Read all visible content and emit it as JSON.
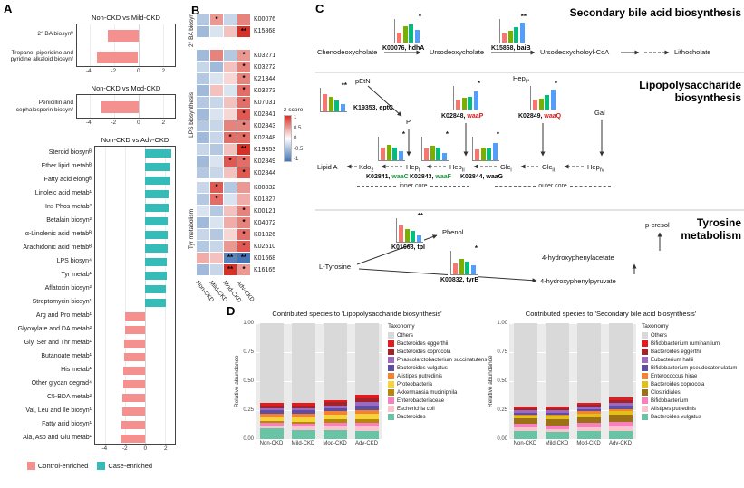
{
  "labels": {
    "a": "A",
    "b": "B",
    "c": "C",
    "d": "D"
  },
  "panel_a": {
    "legend": [
      {
        "label": "Control-enriched",
        "color": "#F4908E"
      },
      {
        "label": "Case-enriched",
        "color": "#35BCB9"
      }
    ]
  },
  "heatmap_scale": {
    "title": "z-score",
    "ticks": [
      "1",
      "0.5",
      "0",
      "-0.5",
      "-1"
    ]
  },
  "mini_colors": [
    "#F8766D",
    "#7CAE00",
    "#00BF7D",
    "#529EFF"
  ],
  "mini_categories": [
    "Non-CKD",
    "Mild-CKD",
    "Mod-CKD",
    "Adv-CKD"
  ],
  "pathway": {
    "bile": {
      "title": "Secondary bile acid biosynthesis",
      "cheno": "Chenodeoxycholate",
      "urso": "Ursodeoxycholate",
      "urso_coa": "Ursodeoxycholoyl-CoA",
      "litho": "Lithocholate",
      "hdhA": {
        "ko": "K00076, ",
        "gene": "hdhA",
        "gene_color": "#000000"
      },
      "baiB": {
        "ko": "K15868, ",
        "gene": "baiB",
        "gene_color": "#000000"
      }
    },
    "lps": {
      "title1": "Lipopolysaccharide",
      "title2": "biosynthesis",
      "petn": "pEtN",
      "p": "P",
      "hep3": {
        "base": "Hep",
        "sub": "III"
      },
      "gal": "Gal",
      "lipid_a": "Lipid A",
      "kdo2": {
        "base": "Kdo",
        "sub": "2"
      },
      "hep1": {
        "base": "Hep",
        "sub": "I"
      },
      "hep2": {
        "base": "Hep",
        "sub": "II"
      },
      "glc1": {
        "base": "Glc",
        "sub": "I"
      },
      "glc2": {
        "base": "Glc",
        "sub": "II"
      },
      "hep4": {
        "base": "Hep",
        "sub": "IV"
      },
      "eptC": {
        "ko": "K19353, ",
        "gene": "eptC",
        "gene_color": "#000000"
      },
      "waaP": {
        "ko": "K02848, ",
        "gene": "waaP",
        "gene_color": "#D7191C"
      },
      "waaQ": {
        "ko": "K02849, ",
        "gene": "waaQ",
        "gene_color": "#D7191C"
      },
      "waaC": {
        "ko": "K02841, ",
        "gene": "waaC",
        "gene_color": "#1A9641"
      },
      "waaF": {
        "ko": "K02843, ",
        "gene": "waaF",
        "gene_color": "#1A9641"
      },
      "waaG": {
        "ko": "K02844, ",
        "gene": "waaG",
        "gene_color": "#000000"
      },
      "inner_core": "inner core",
      "outer_core": "outer core"
    },
    "tyr": {
      "title1": "Tyrosine",
      "title2": "metabolism",
      "ltyr": "L-Tyrosine",
      "phenol": "Phenol",
      "hpp": "4-hydroxyphenylpyruvate",
      "hpa": "4-hydroxyphenylacetate",
      "pcresol": "p-cresol",
      "tpl": {
        "ko": "K01668, ",
        "gene": "tpl",
        "gene_color": "#000000"
      },
      "tyrB": {
        "ko": "K00832, ",
        "gene": "tyrB",
        "gene_color": "#000000"
      }
    }
  },
  "chart_data": [
    {
      "id": "a1",
      "panel": "A",
      "type": "bar",
      "orientation": "horizontal",
      "title": "Non-CKD vs Mild-CKD",
      "categories": [
        "2° BA biosynᴮ",
        "Tropane, piperidine and pyridine alkaloid biosyn²"
      ],
      "values": [
        -2.5,
        -3.4
      ],
      "xlim": [
        -5,
        3
      ],
      "xticks": [
        -4,
        -2,
        0,
        2
      ],
      "bar_colors": {
        "negative": "#F4908E",
        "positive": "#35BCB9"
      }
    },
    {
      "id": "a2",
      "panel": "A",
      "type": "bar",
      "orientation": "horizontal",
      "title": "Non-CKD vs Mod-CKD",
      "categories": [
        "Penicillin and cephalosporin biosyn²"
      ],
      "values": [
        -3.0
      ],
      "xlim": [
        -5,
        3
      ],
      "xticks": [
        -4,
        -2,
        0,
        2
      ],
      "bar_colors": {
        "negative": "#F4908E",
        "positive": "#35BCB9"
      }
    },
    {
      "id": "a3",
      "panel": "A",
      "type": "bar",
      "orientation": "horizontal",
      "title": "Non-CKD vs Adv-CKD",
      "categories": [
        "Steroid biosynᴮ",
        "Ether lipid metabᴮ",
        "Fatty acid elongᴮ",
        "Linoleic acid metab¹",
        "Ins Phos metab²",
        "Betalain biosyn²",
        "α-Linolenic acid metabᴮ",
        "Arachidonic acid metabᴮ",
        "LPS biosyn⁴",
        "Tyr metab¹",
        "Aflatoxin biosyn²",
        "Streptomycin biosyn¹",
        "Arg and Pro metab¹",
        "Glyoxylate and DA metab²",
        "Gly, Ser and Thr metab¹",
        "Butanoate metab¹",
        "His metab¹",
        "Other glycan degrad⁴",
        "C5-BDA metab²",
        "Val, Leu and Ile biosyn¹",
        "Fatty acid biosyn¹",
        "Ala, Asp and Glu metab¹"
      ],
      "values": [
        2.6,
        2.5,
        2.5,
        2.4,
        2.4,
        2.3,
        2.3,
        2.3,
        2.2,
        2.2,
        2.1,
        2.1,
        -2.0,
        -2.0,
        -2.1,
        -2.1,
        -2.2,
        -2.2,
        -2.3,
        -2.3,
        -2.4,
        -2.5
      ],
      "xlim": [
        -5,
        3
      ],
      "xticks": [
        -4,
        -2,
        0,
        2
      ],
      "bar_colors": {
        "negative": "#F4908E",
        "positive": "#35BCB9"
      }
    },
    {
      "id": "b",
      "panel": "B",
      "type": "heatmap",
      "columns": [
        "Non-CKD",
        "Mild-CKD",
        "Mod-CKD",
        "Adv-CKD"
      ],
      "zlim": [
        -1,
        1
      ],
      "colors": {
        "max": "#D73027",
        "mid": "#FFFFFF",
        "min": "#4575B4"
      },
      "groups": [
        {
          "label": "2° BA biosyn",
          "rows": [
            {
              "id": "K00076",
              "values": [
                -0.4,
                0.5,
                -0.3,
                0.6
              ],
              "sig": [
                "",
                "*",
                "",
                ""
              ]
            },
            {
              "id": "K15868",
              "values": [
                -0.5,
                -0.2,
                0.3,
                1.0
              ],
              "sig": [
                "",
                "",
                "",
                "**"
              ]
            }
          ]
        },
        {
          "label": "LPS biosynthesis",
          "rows": [
            {
              "id": "K03271",
              "values": [
                -0.5,
                0.6,
                -0.4,
                0.5
              ],
              "sig": [
                "",
                "",
                "",
                "*"
              ]
            },
            {
              "id": "K03272",
              "values": [
                -0.3,
                -0.5,
                0.3,
                0.6
              ],
              "sig": [
                "",
                "",
                "",
                "*"
              ]
            },
            {
              "id": "K21344",
              "values": [
                -0.4,
                -0.2,
                0.2,
                0.6
              ],
              "sig": [
                "",
                "",
                "",
                "*"
              ]
            },
            {
              "id": "K03273",
              "values": [
                -0.5,
                0.3,
                -0.2,
                0.7
              ],
              "sig": [
                "",
                "",
                "",
                "*"
              ]
            },
            {
              "id": "K07031",
              "values": [
                -0.4,
                -0.3,
                0.3,
                0.7
              ],
              "sig": [
                "",
                "",
                "",
                "*"
              ]
            },
            {
              "id": "K02841",
              "values": [
                -0.5,
                -0.2,
                0.2,
                0.8
              ],
              "sig": [
                "",
                "",
                "",
                "*"
              ]
            },
            {
              "id": "K02843",
              "values": [
                -0.4,
                -0.3,
                0.6,
                0.6
              ],
              "sig": [
                "",
                "",
                "",
                "*"
              ]
            },
            {
              "id": "K02848",
              "values": [
                -0.5,
                -0.3,
                0.7,
                0.7
              ],
              "sig": [
                "",
                "",
                "*",
                "*"
              ]
            },
            {
              "id": "K19353",
              "values": [
                -0.3,
                -0.4,
                0.3,
                1.0
              ],
              "sig": [
                "",
                "",
                "",
                "**"
              ]
            },
            {
              "id": "K02849",
              "values": [
                -0.5,
                -0.2,
                0.8,
                0.7
              ],
              "sig": [
                "",
                "",
                "*",
                "*"
              ]
            },
            {
              "id": "K02844",
              "values": [
                -0.4,
                -0.3,
                0.3,
                0.8
              ],
              "sig": [
                "",
                "",
                "",
                "*"
              ]
            }
          ]
        },
        {
          "label": "Tyr metabolism",
          "rows": [
            {
              "id": "K00832",
              "values": [
                -0.3,
                0.8,
                -0.4,
                0.5
              ],
              "sig": [
                "",
                "*",
                "",
                ""
              ]
            },
            {
              "id": "K01827",
              "values": [
                -0.4,
                0.7,
                -0.2,
                0.4
              ],
              "sig": [
                "",
                "*",
                "",
                ""
              ]
            },
            {
              "id": "K00121",
              "values": [
                -0.2,
                -0.4,
                0.3,
                0.6
              ],
              "sig": [
                "",
                "",
                "",
                "*"
              ]
            },
            {
              "id": "K04072",
              "values": [
                -0.5,
                -0.2,
                0.4,
                0.6
              ],
              "sig": [
                "",
                "",
                "",
                "*"
              ]
            },
            {
              "id": "K01826",
              "values": [
                -0.3,
                -0.4,
                0.2,
                0.7
              ],
              "sig": [
                "",
                "",
                "",
                "*"
              ]
            },
            {
              "id": "K02510",
              "values": [
                -0.4,
                -0.3,
                0.5,
                0.8
              ],
              "sig": [
                "",
                "",
                "",
                "*"
              ]
            },
            {
              "id": "K01668",
              "values": [
                0.4,
                0.3,
                -0.9,
                -1.0
              ],
              "sig": [
                "",
                "",
                "**",
                "**"
              ]
            },
            {
              "id": "K16165",
              "values": [
                -0.5,
                -0.3,
                1.0,
                0.5
              ],
              "sig": [
                "",
                "",
                "**",
                "*"
              ]
            }
          ]
        }
      ]
    },
    {
      "id": "mini_hdhA",
      "panel": "C",
      "type": "bar",
      "values": [
        0.45,
        0.75,
        0.85,
        0.6
      ],
      "sig": "*"
    },
    {
      "id": "mini_baiB",
      "panel": "C",
      "type": "bar",
      "values": [
        0.4,
        0.55,
        0.7,
        0.9
      ],
      "sig": "**"
    },
    {
      "id": "mini_eptC",
      "panel": "C",
      "type": "bar",
      "values": [
        0.8,
        0.65,
        0.5,
        0.35
      ],
      "sig": "**"
    },
    {
      "id": "mini_waaP",
      "panel": "C",
      "type": "bar",
      "values": [
        0.45,
        0.55,
        0.6,
        0.85
      ],
      "sig": "*"
    },
    {
      "id": "mini_waaQ",
      "panel": "C",
      "type": "bar",
      "values": [
        0.45,
        0.5,
        0.65,
        0.9
      ],
      "sig": "*"
    },
    {
      "id": "mini_waaC",
      "panel": "C",
      "type": "bar",
      "values": [
        0.6,
        0.7,
        0.6,
        0.4
      ],
      "sig": "*"
    },
    {
      "id": "mini_waaF",
      "panel": "C",
      "type": "bar",
      "values": [
        0.55,
        0.65,
        0.6,
        0.35
      ],
      "sig": "*"
    },
    {
      "id": "mini_waaG",
      "panel": "C",
      "type": "bar",
      "values": [
        0.5,
        0.6,
        0.55,
        0.8
      ],
      "sig": "*"
    },
    {
      "id": "mini_tpl",
      "panel": "C",
      "type": "bar",
      "values": [
        0.75,
        0.6,
        0.5,
        0.3
      ],
      "sig": "**"
    },
    {
      "id": "mini_tyrB",
      "panel": "C",
      "type": "bar",
      "values": [
        0.5,
        0.7,
        0.6,
        0.4
      ],
      "sig": "*"
    },
    {
      "id": "d1",
      "panel": "D",
      "type": "stacked_bar",
      "title": "Contributed species to 'Lipopolysaccharide biosynthesis'",
      "ylabel": "Relative abundance",
      "yticks": [
        "1.00",
        "0.75",
        "0.50",
        "0.25",
        "0.00"
      ],
      "categories": [
        "Non-CKD",
        "Mild-CKD",
        "Mod-CKD",
        "Adv-CKD"
      ],
      "legend_title": "Taxonomy",
      "species": [
        {
          "name": "Others",
          "color": "#D9D9D9"
        },
        {
          "name": "Bacteroides eggerthii",
          "color": "#E41A1C"
        },
        {
          "name": "Bacteroides coprocola",
          "color": "#A0242A"
        },
        {
          "name": "Phascolarctobacterium succinatutens",
          "color": "#9A6BC0"
        },
        {
          "name": "Bacteroides vulgatus",
          "color": "#5E4FA2"
        },
        {
          "name": "Alistipes putredinis",
          "color": "#F58231"
        },
        {
          "name": "Proteobacteria",
          "color": "#F5D33A"
        },
        {
          "name": "Akkermansia muciniphila",
          "color": "#B8860B"
        },
        {
          "name": "Enterobacteriaceae",
          "color": "#F781BF"
        },
        {
          "name": "Escherichia coli",
          "color": "#F9C4CE"
        },
        {
          "name": "Bacteroides",
          "color": "#69C3A5"
        }
      ],
      "values": [
        [
          0.69,
          0.02,
          0.02,
          0.02,
          0.03,
          0.03,
          0.03,
          0.02,
          0.02,
          0.03,
          0.09
        ],
        [
          0.69,
          0.02,
          0.02,
          0.02,
          0.03,
          0.03,
          0.04,
          0.02,
          0.02,
          0.03,
          0.08
        ],
        [
          0.66,
          0.02,
          0.03,
          0.02,
          0.03,
          0.03,
          0.04,
          0.03,
          0.03,
          0.03,
          0.08
        ],
        [
          0.62,
          0.03,
          0.03,
          0.03,
          0.04,
          0.03,
          0.05,
          0.03,
          0.03,
          0.04,
          0.07
        ]
      ]
    },
    {
      "id": "d2",
      "panel": "D",
      "type": "stacked_bar",
      "title": "Contributed species to 'Secondary bile acid biosynthesis'",
      "ylabel": "Relative abundance",
      "yticks": [
        "1.00",
        "0.75",
        "0.50",
        "0.25",
        "0.00"
      ],
      "categories": [
        "Non-CKD",
        "Mild-CKD",
        "Mod-CKD",
        "Adv-CKD"
      ],
      "legend_title": "Taxonomy",
      "species": [
        {
          "name": "Others",
          "color": "#D9D9D9"
        },
        {
          "name": "Bifidobacterium ruminantium",
          "color": "#E41A1C"
        },
        {
          "name": "Bacteroides eggerthii",
          "color": "#A0242A"
        },
        {
          "name": "Eubacterium hallii",
          "color": "#9A6BC0"
        },
        {
          "name": "Bifidobacterium pseudocatenulatum",
          "color": "#5E4FA2"
        },
        {
          "name": "Enterococcus hirae",
          "color": "#F58231"
        },
        {
          "name": "Bacteroides coprocola",
          "color": "#E3C018"
        },
        {
          "name": "Clostridiales",
          "color": "#9C7016"
        },
        {
          "name": "Bifidobacterium",
          "color": "#F781BF"
        },
        {
          "name": "Alistipes putredinis",
          "color": "#F9C4CE"
        },
        {
          "name": "Bacteroides vulgatus",
          "color": "#69C3A5"
        }
      ],
      "values": [
        [
          0.72,
          0.01,
          0.02,
          0.02,
          0.02,
          0.01,
          0.02,
          0.05,
          0.03,
          0.03,
          0.07
        ],
        [
          0.72,
          0.01,
          0.02,
          0.02,
          0.02,
          0.01,
          0.03,
          0.05,
          0.03,
          0.03,
          0.06
        ],
        [
          0.69,
          0.01,
          0.02,
          0.02,
          0.02,
          0.02,
          0.03,
          0.05,
          0.04,
          0.03,
          0.07
        ],
        [
          0.64,
          0.02,
          0.03,
          0.02,
          0.03,
          0.02,
          0.03,
          0.06,
          0.04,
          0.04,
          0.07
        ]
      ]
    }
  ]
}
